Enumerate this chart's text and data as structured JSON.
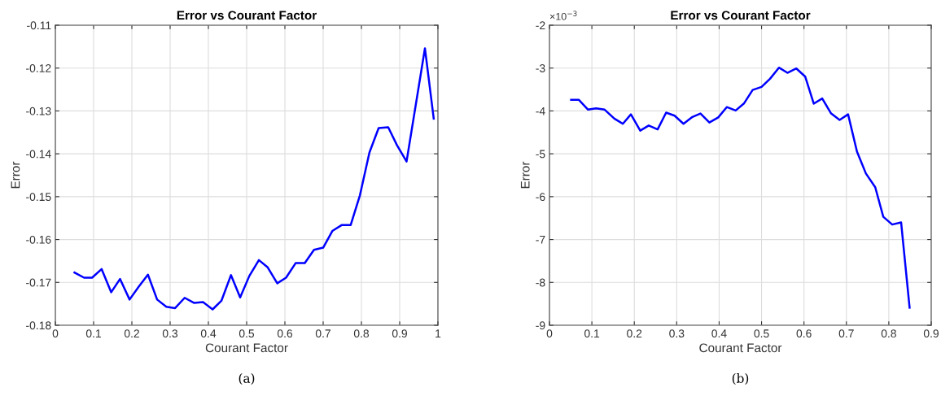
{
  "chart_data": [
    {
      "type": "line",
      "title": "Error vs Courant Factor",
      "xlabel": "Courant Factor",
      "ylabel": "Error",
      "annotations": [
        "(a)"
      ],
      "grid": true,
      "legend": false,
      "marker": "none",
      "line_style": "solid",
      "xlim": [
        0,
        1
      ],
      "xticks": [
        0,
        {
          "value": 0.1,
          "label": "0.1"
        },
        {
          "value": 0.2,
          "label": "0.2"
        },
        {
          "value": 0.3,
          "label": "0.3"
        },
        {
          "value": 0.4,
          "label": "0.4"
        },
        {
          "value": 0.5,
          "label": "0.5"
        },
        {
          "value": 0.6,
          "label": "0.6"
        },
        {
          "value": 0.7,
          "label": "0.7"
        },
        {
          "value": 0.8,
          "label": "0.8"
        },
        {
          "value": 0.9,
          "label": "0.9"
        },
        1
      ],
      "ylim": [
        -0.18,
        -0.11
      ],
      "yticks": [
        -0.18,
        -0.17,
        -0.16,
        -0.15,
        -0.14,
        -0.13,
        -0.12,
        -0.11
      ],
      "x": [
        0.05,
        0.075,
        0.096,
        0.121,
        0.146,
        0.169,
        0.194,
        0.218,
        0.242,
        0.266,
        0.29,
        0.313,
        0.338,
        0.363,
        0.386,
        0.411,
        0.434,
        0.459,
        0.483,
        0.507,
        0.532,
        0.555,
        0.58,
        0.603,
        0.628,
        0.652,
        0.676,
        0.7,
        0.724,
        0.749,
        0.772,
        0.796,
        0.821,
        0.845,
        0.87,
        0.893,
        0.918,
        0.966,
        0.989
      ],
      "series": [
        {
          "color": "#0000ff",
          "values": [
            -0.1677,
            -0.1689,
            -0.1689,
            -0.1669,
            -0.1723,
            -0.1692,
            -0.174,
            -0.171,
            -0.1682,
            -0.174,
            -0.1757,
            -0.176,
            -0.1736,
            -0.1748,
            -0.1746,
            -0.1763,
            -0.1743,
            -0.1683,
            -0.1735,
            -0.1685,
            -0.1648,
            -0.1665,
            -0.1702,
            -0.1689,
            -0.1655,
            -0.1655,
            -0.1624,
            -0.1619,
            -0.158,
            -0.1566,
            -0.1566,
            -0.1497,
            -0.1397,
            -0.134,
            -0.1338,
            -0.138,
            -0.1418,
            -0.1154,
            -0.1318
          ]
        }
      ]
    },
    {
      "type": "line",
      "title": "Error vs Courant Factor",
      "xlabel": "Courant Factor",
      "ylabel": "Error",
      "annotations": [
        "×10$^{−3}$",
        "(b)"
      ],
      "grid": true,
      "legend": false,
      "marker": "none",
      "line_style": "solid",
      "xlim": [
        0,
        0.9
      ],
      "xticks": [
        0,
        {
          "value": 0.1,
          "label": "0.1"
        },
        {
          "value": 0.2,
          "label": "0.2"
        },
        {
          "value": 0.3,
          "label": "0.3"
        },
        {
          "value": 0.4,
          "label": "0.4"
        },
        {
          "value": 0.5,
          "label": "0.5"
        },
        {
          "value": 0.6,
          "label": "0.6"
        },
        {
          "value": 0.7,
          "label": "0.7"
        },
        {
          "value": 0.8,
          "label": "0.8"
        },
        {
          "value": 0.9,
          "label": "0.9"
        }
      ],
      "ylim": [
        -9,
        -2
      ],
      "yticks": [
        -9,
        -8,
        -7,
        -6,
        -5,
        -4,
        -3,
        -2
      ],
      "x": [
        0.051,
        0.069,
        0.091,
        0.11,
        0.13,
        0.153,
        0.173,
        0.192,
        0.214,
        0.234,
        0.255,
        0.275,
        0.295,
        0.316,
        0.337,
        0.356,
        0.377,
        0.398,
        0.418,
        0.439,
        0.459,
        0.479,
        0.5,
        0.52,
        0.541,
        0.561,
        0.582,
        0.603,
        0.623,
        0.643,
        0.664,
        0.684,
        0.704,
        0.725,
        0.746,
        0.768,
        0.787,
        0.808,
        0.829,
        0.849
      ],
      "series": [
        {
          "color": "#0000ff",
          "values": [
            -3.74,
            -3.74,
            -3.97,
            -3.94,
            -3.97,
            -4.18,
            -4.3,
            -4.08,
            -4.46,
            -4.34,
            -4.43,
            -4.04,
            -4.11,
            -4.3,
            -4.14,
            -4.06,
            -4.27,
            -4.15,
            -3.91,
            -3.99,
            -3.82,
            -3.51,
            -3.44,
            -3.25,
            -2.99,
            -3.11,
            -3.01,
            -3.2,
            -3.83,
            -3.71,
            -4.06,
            -4.21,
            -4.08,
            -4.95,
            -5.46,
            -5.78,
            -6.47,
            -6.65,
            -6.6,
            -8.59
          ]
        }
      ]
    }
  ]
}
